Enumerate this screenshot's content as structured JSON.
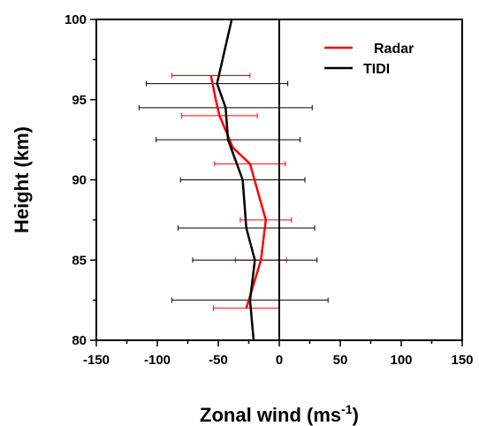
{
  "chart_data": {
    "type": "line",
    "title": "",
    "xlabel": "Zonal wind (ms",
    "xlabel_superscript": "-1",
    "xlabel_suffix": ")",
    "ylabel": "Height (km)",
    "xlim": [
      -150,
      150
    ],
    "ylim": [
      80,
      100
    ],
    "xticks": [
      -150,
      -100,
      -50,
      0,
      50,
      100,
      150
    ],
    "yticks": [
      80,
      85,
      90,
      95,
      100
    ],
    "grid": false,
    "legend_position": "top-right",
    "reference_line_x": 0,
    "series": [
      {
        "name": "Radar",
        "color": "#ff0000",
        "points": [
          {
            "y": 96.5,
            "x": -56,
            "xerr": 32
          },
          {
            "y": 95.0,
            "x": -52
          },
          {
            "y": 94.0,
            "x": -49,
            "xerr": 31
          },
          {
            "y": 92.0,
            "x": -38
          },
          {
            "y": 91.0,
            "x": -24,
            "xerr": 29
          },
          {
            "y": 87.5,
            "x": -11,
            "xerr": 21
          },
          {
            "y": 85.0,
            "x": -15,
            "xerr": 21
          },
          {
            "y": 82.0,
            "x": -27,
            "xerr": 27
          }
        ]
      },
      {
        "name": "TIDI",
        "color": "#000000",
        "points": [
          {
            "y": 100.0,
            "x": -39
          },
          {
            "y": 96.0,
            "x": -51,
            "xerr": 58
          },
          {
            "y": 94.5,
            "x": -44,
            "xerr": 71
          },
          {
            "y": 92.5,
            "x": -42,
            "xerr": 59
          },
          {
            "y": 90.0,
            "x": -30,
            "xerr": 51
          },
          {
            "y": 87.0,
            "x": -27,
            "xerr": 56
          },
          {
            "y": 85.0,
            "x": -20,
            "xerr": 51
          },
          {
            "y": 82.5,
            "x": -24,
            "xerr": 64
          },
          {
            "y": 80.0,
            "x": -21
          }
        ]
      }
    ]
  }
}
